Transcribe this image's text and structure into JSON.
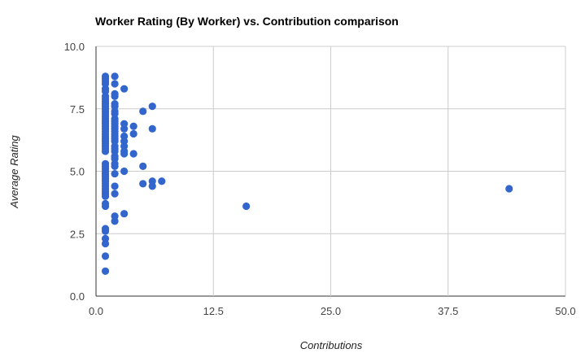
{
  "chart_data": {
    "type": "scatter",
    "title": "Worker Rating (By Worker) vs. Contribution comparison",
    "xlabel": "Contributions",
    "ylabel": "Average Rating",
    "xlim": [
      0,
      50
    ],
    "ylim": [
      0,
      10
    ],
    "xticks": [
      "0.0",
      "12.5",
      "25.0",
      "37.5",
      "50.0"
    ],
    "yticks": [
      "0.0",
      "2.5",
      "5.0",
      "7.5",
      "10.0"
    ],
    "grid": true,
    "legend": "none",
    "marker_color": "#3366cc",
    "points": [
      [
        1,
        8.8
      ],
      [
        1,
        8.7
      ],
      [
        1,
        8.6
      ],
      [
        1,
        8.5
      ],
      [
        1,
        8.3
      ],
      [
        1,
        8.2
      ],
      [
        1,
        8.0
      ],
      [
        1,
        7.9
      ],
      [
        1,
        7.8
      ],
      [
        1,
        7.7
      ],
      [
        1,
        7.6
      ],
      [
        1,
        7.5
      ],
      [
        1,
        7.4
      ],
      [
        1,
        7.3
      ],
      [
        1,
        7.2
      ],
      [
        1,
        7.1
      ],
      [
        1,
        7.0
      ],
      [
        1,
        6.9
      ],
      [
        1,
        6.8
      ],
      [
        1,
        6.7
      ],
      [
        1,
        6.6
      ],
      [
        1,
        6.5
      ],
      [
        1,
        6.4
      ],
      [
        1,
        6.3
      ],
      [
        1,
        6.2
      ],
      [
        1,
        6.1
      ],
      [
        1,
        6.0
      ],
      [
        1,
        5.9
      ],
      [
        1,
        5.8
      ],
      [
        1,
        5.3
      ],
      [
        1,
        5.2
      ],
      [
        1,
        5.1
      ],
      [
        1,
        5.0
      ],
      [
        1,
        4.9
      ],
      [
        1,
        4.8
      ],
      [
        1,
        4.7
      ],
      [
        1,
        4.6
      ],
      [
        1,
        4.5
      ],
      [
        1,
        4.4
      ],
      [
        1,
        4.3
      ],
      [
        1,
        4.2
      ],
      [
        1,
        4.1
      ],
      [
        1,
        4.0
      ],
      [
        1,
        3.7
      ],
      [
        1,
        3.6
      ],
      [
        1,
        2.7
      ],
      [
        1,
        2.6
      ],
      [
        1,
        2.3
      ],
      [
        1,
        2.1
      ],
      [
        1,
        1.6
      ],
      [
        1,
        1.0
      ],
      [
        2,
        8.8
      ],
      [
        2,
        8.5
      ],
      [
        2,
        8.1
      ],
      [
        2,
        8.0
      ],
      [
        2,
        7.7
      ],
      [
        2,
        7.6
      ],
      [
        2,
        7.4
      ],
      [
        2,
        7.3
      ],
      [
        2,
        7.1
      ],
      [
        2,
        7.0
      ],
      [
        2,
        6.9
      ],
      [
        2,
        6.8
      ],
      [
        2,
        6.7
      ],
      [
        2,
        6.6
      ],
      [
        2,
        6.5
      ],
      [
        2,
        6.4
      ],
      [
        2,
        6.3
      ],
      [
        2,
        6.2
      ],
      [
        2,
        6.0
      ],
      [
        2,
        5.9
      ],
      [
        2,
        5.8
      ],
      [
        2,
        5.6
      ],
      [
        2,
        5.5
      ],
      [
        2,
        5.3
      ],
      [
        2,
        5.2
      ],
      [
        2,
        4.9
      ],
      [
        2,
        4.4
      ],
      [
        2,
        4.1
      ],
      [
        2,
        3.2
      ],
      [
        2,
        3.0
      ],
      [
        3,
        8.3
      ],
      [
        3,
        6.9
      ],
      [
        3,
        6.7
      ],
      [
        3,
        6.4
      ],
      [
        3,
        6.2
      ],
      [
        3,
        6.0
      ],
      [
        3,
        5.8
      ],
      [
        3,
        5.7
      ],
      [
        3,
        5.0
      ],
      [
        3,
        3.3
      ],
      [
        4,
        6.8
      ],
      [
        4,
        6.5
      ],
      [
        4,
        5.7
      ],
      [
        5,
        7.4
      ],
      [
        5,
        5.2
      ],
      [
        5,
        4.5
      ],
      [
        6,
        7.6
      ],
      [
        6,
        6.7
      ],
      [
        6,
        4.6
      ],
      [
        6,
        4.4
      ],
      [
        7,
        4.6
      ],
      [
        16,
        3.6
      ],
      [
        44,
        4.3
      ]
    ]
  }
}
